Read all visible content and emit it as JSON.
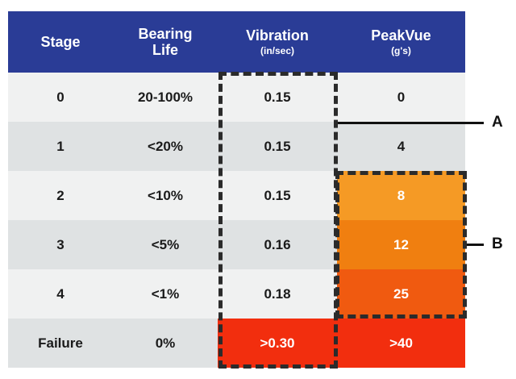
{
  "headers": {
    "stage": "Stage",
    "bearing_line1": "Bearing",
    "bearing_line2": "Life",
    "vibration": "Vibration",
    "vibration_unit": "(in/sec)",
    "peakvue": "PeakVue",
    "peakvue_unit": "(g's)"
  },
  "rows": [
    {
      "stage": "0",
      "life": "20-100%",
      "vibration": "0.15",
      "peakvue": "0"
    },
    {
      "stage": "1",
      "life": "<20%",
      "vibration": "0.15",
      "peakvue": "4"
    },
    {
      "stage": "2",
      "life": "<10%",
      "vibration": "0.15",
      "peakvue": "8"
    },
    {
      "stage": "3",
      "life": "<5%",
      "vibration": "0.16",
      "peakvue": "12"
    },
    {
      "stage": "4",
      "life": "<1%",
      "vibration": "0.18",
      "peakvue": "25"
    },
    {
      "stage": "Failure",
      "life": "0%",
      "vibration": ">0.30",
      "peakvue": ">40"
    }
  ],
  "callouts": {
    "a": "A",
    "b": "B"
  },
  "colors": {
    "header": "#2a3c96",
    "row_light": "#f0f1f1",
    "row_dark": "#dfe2e3",
    "peak_stage2": "#f59a25",
    "peak_stage3": "#f07f10",
    "peak_stage4": "#f05a10",
    "failure": "#f22e0e"
  }
}
